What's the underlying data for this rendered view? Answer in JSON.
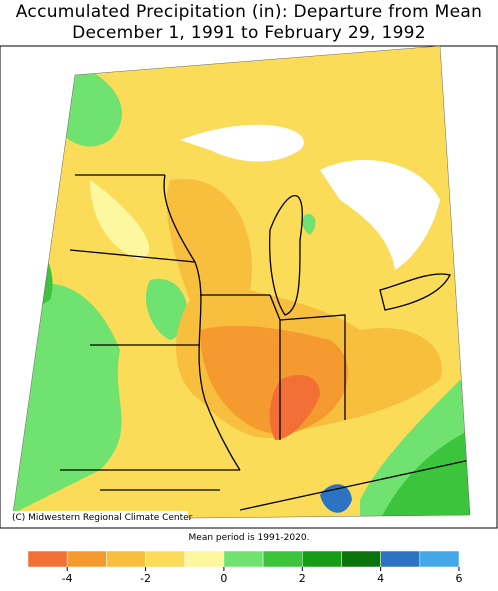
{
  "header": {
    "title_line1": "Accumulated Precipitation (in): Departure from Mean",
    "title_line2": "December 1, 1991 to February 29, 1992"
  },
  "map": {
    "credit": "(C) Midwestern Regional Climate Center",
    "note": "Mean period is 1991-2020."
  },
  "legend": {
    "bounds": [
      -5,
      -4,
      -3,
      -2,
      -1,
      0,
      1,
      2,
      3,
      4,
      5,
      6
    ],
    "colors": [
      "#f27036",
      "#f59a2e",
      "#f8be3e",
      "#fadc58",
      "#fdf7a0",
      "#70e270",
      "#3cc43c",
      "#169c16",
      "#0b740b",
      "#2c74c2",
      "#45a6e8"
    ],
    "ticks": [
      -4,
      -2,
      0,
      2,
      4,
      6
    ]
  }
}
